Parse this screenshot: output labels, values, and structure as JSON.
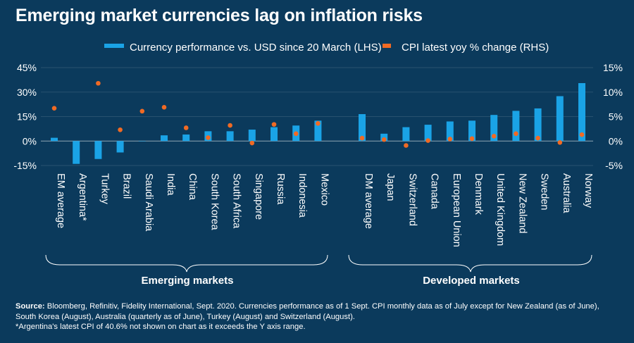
{
  "title": "Emerging market currencies lag on inflation risks",
  "colors": {
    "background": "#0b3a5c",
    "bar": "#1aa3e6",
    "dot": "#f06a24",
    "text": "#ffffff"
  },
  "legend": {
    "bar_label": "Currency performance vs. USD since 20 March (LHS)",
    "dot_label": "CPI latest yoy % change (RHS)"
  },
  "groups": {
    "emerging": "Emerging markets",
    "developed": "Developed markets"
  },
  "source": {
    "label": "Source:",
    "line1": "Bloomberg, Refinitiv, Fidelity International, Sept. 2020. Currencies performance as of 1 Sept. CPI monthly data as of July except for New Zealand (as of June), South Korea (August), Australia (quarterly as of June), Turkey (August) and Switzerland (August).",
    "line2": "*Argentina's latest CPI of 40.6% not shown on chart as it exceeds the Y axis range."
  },
  "chart_data": {
    "type": "bar",
    "categories": [
      "EM average",
      "Argentina*",
      "Turkey",
      "Brazil",
      "Saudi Arabia",
      "India",
      "China",
      "South Korea",
      "South Africa",
      "Singapore",
      "Russia",
      "Indonesia",
      "Mexico",
      "DM average",
      "Japan",
      "Switzerland",
      "Canada",
      "European Union",
      "Denmark",
      "United Kingdom",
      "New Zealand",
      "Sweden",
      "Australia",
      "Norway"
    ],
    "series": [
      {
        "name": "Currency performance vs. USD since 20 March (LHS)",
        "axis": "left",
        "values": [
          2,
          -14,
          -11,
          -7,
          0,
          3.5,
          4,
          6,
          6,
          7,
          8.5,
          9.5,
          12.5,
          16.5,
          4.5,
          8.5,
          10,
          12,
          12.5,
          16,
          18.5,
          20,
          27.5,
          35.5
        ]
      },
      {
        "name": "CPI latest yoy % change (RHS)",
        "axis": "right",
        "values": [
          6.7,
          null,
          11.8,
          2.3,
          6.1,
          6.9,
          2.7,
          0.7,
          3.2,
          -0.4,
          3.4,
          1.5,
          3.6,
          0.6,
          0.3,
          -0.9,
          0.1,
          0.4,
          0.5,
          1.0,
          1.5,
          0.6,
          -0.3,
          1.3
        ]
      }
    ],
    "ylim_left": [
      -15,
      45
    ],
    "ylim_right": [
      -5,
      15
    ],
    "yticks_left": [
      "45%",
      "30%",
      "15%",
      "0%",
      "-15%"
    ],
    "yticks_right": [
      "15%",
      "10%",
      "5%",
      "0%",
      "-5%"
    ],
    "legend_position": "top",
    "grid": true
  }
}
